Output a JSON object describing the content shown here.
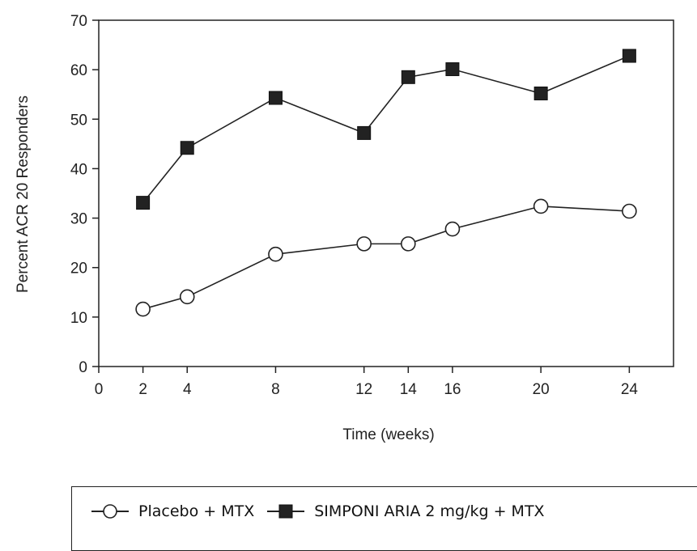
{
  "chart_data": {
    "type": "line",
    "title": "",
    "xlabel": "Time (weeks)",
    "ylabel": "Percent ACR 20 Responders",
    "xlim": [
      0,
      26
    ],
    "ylim": [
      0,
      70
    ],
    "xticks": [
      0,
      2,
      4,
      8,
      12,
      14,
      16,
      20,
      24
    ],
    "yticks": [
      0,
      10,
      20,
      30,
      40,
      50,
      60,
      70
    ],
    "grid": false,
    "legend_position": "bottom",
    "series": [
      {
        "name": "Placebo + MTX",
        "marker": "open-circle",
        "color": "#222222",
        "x": [
          2,
          4,
          8,
          12,
          14,
          16,
          20,
          24
        ],
        "y": [
          11.6,
          14.1,
          22.7,
          24.8,
          24.8,
          27.8,
          32.4,
          31.4
        ]
      },
      {
        "name": "SIMPONI ARIA 2 mg/kg + MTX",
        "marker": "filled-square",
        "color": "#222222",
        "x": [
          2,
          4,
          8,
          12,
          14,
          16,
          20,
          24
        ],
        "y": [
          33.1,
          44.2,
          54.3,
          47.2,
          58.5,
          60.1,
          55.2,
          62.8
        ]
      }
    ]
  }
}
